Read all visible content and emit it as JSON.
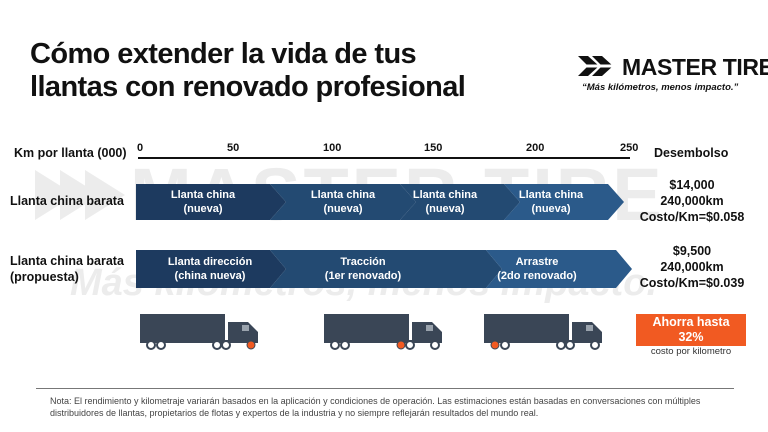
{
  "title": "Cómo extender la vida de tus llantas con renovado profesional",
  "brand": {
    "name": "MASTER TIRE",
    "slogan": "“Más kilómetros, menos impacto.”"
  },
  "watermark": {
    "name": "MASTER TIRE",
    "slogan": "Más kilómetros, menos impacto."
  },
  "axis": {
    "label": "Km por llanta (000)",
    "ticks": [
      "0",
      "50",
      "100",
      "150",
      "200",
      "250"
    ],
    "cost_header": "Desembolso"
  },
  "rows": [
    {
      "label_line1": "Llanta china barata",
      "label_line2": "",
      "segments": [
        {
          "line1": "Llanta china",
          "line2": "(nueva)"
        },
        {
          "line1": "Llanta china",
          "line2": "(nueva)"
        },
        {
          "line1": "Llanta china",
          "line2": "(nueva)"
        },
        {
          "line1": "Llanta china",
          "line2": "(nueva)"
        }
      ],
      "cost": {
        "amount": "$14,000",
        "km": "240,000km",
        "per_km": "Costo/Km=$0.058"
      }
    },
    {
      "label_line1": "Llanta china barata",
      "label_line2": "(propuesta)",
      "segments": [
        {
          "line1": "Llanta dirección",
          "line2": "(china nueva)"
        },
        {
          "line1": "Tracción",
          "line2": "(1er renovado)"
        },
        {
          "line1": "Arrastre",
          "line2": "(2do renovado)"
        }
      ],
      "cost": {
        "amount": "$9,500",
        "km": "240,000km",
        "per_km": "Costo/Km=$0.039"
      }
    }
  ],
  "savings": {
    "line1": "Ahorra hasta",
    "line2": "32%",
    "caption": "costo por kilometro"
  },
  "note": "Nota: El rendimiento y kilometraje variarán basados en la aplicación y condiciones de operación.  Las estimaciones están basadas en conversaciones con múltiples distribuidores de llantas, propietarios de flotas y expertos de la industria y no siempre reflejarán resultados del mundo real.",
  "colors": {
    "arrow_dark": "#1d3a5f",
    "arrow_light": "#2b5a8a",
    "accent": "#f15a22",
    "truck": "#3a4656"
  }
}
